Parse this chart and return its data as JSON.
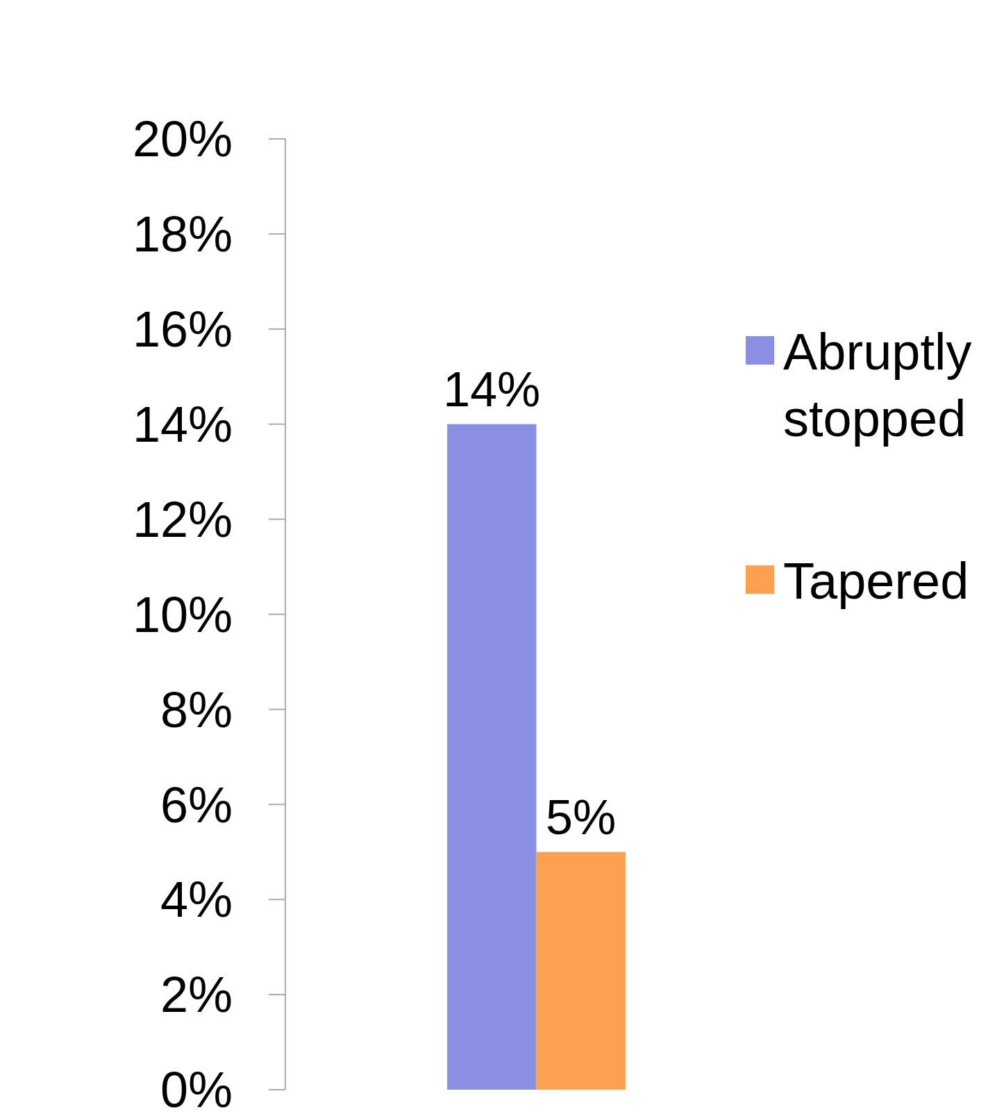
{
  "chart_data": {
    "type": "bar",
    "categories": [
      null
    ],
    "series": [
      {
        "name": "Abruptly stopped",
        "color": "#8b8fe3",
        "values": [
          14
        ],
        "value_labels": [
          "14%"
        ]
      },
      {
        "name": "Tapered",
        "color": "#ff9f4f",
        "values": [
          5
        ],
        "value_labels": [
          "5%"
        ]
      }
    ],
    "ylim": [
      0,
      20
    ],
    "yticks": [
      {
        "value": 0,
        "label": "0%"
      },
      {
        "value": 2,
        "label": "2%"
      },
      {
        "value": 4,
        "label": "4%"
      },
      {
        "value": 6,
        "label": "6%"
      },
      {
        "value": 8,
        "label": "8%"
      },
      {
        "value": 10,
        "label": "10%"
      },
      {
        "value": 12,
        "label": "12%"
      },
      {
        "value": 14,
        "label": "14%"
      },
      {
        "value": 16,
        "label": "16%"
      },
      {
        "value": 18,
        "label": "18%"
      },
      {
        "value": 20,
        "label": "20%"
      }
    ],
    "legend": "right"
  }
}
